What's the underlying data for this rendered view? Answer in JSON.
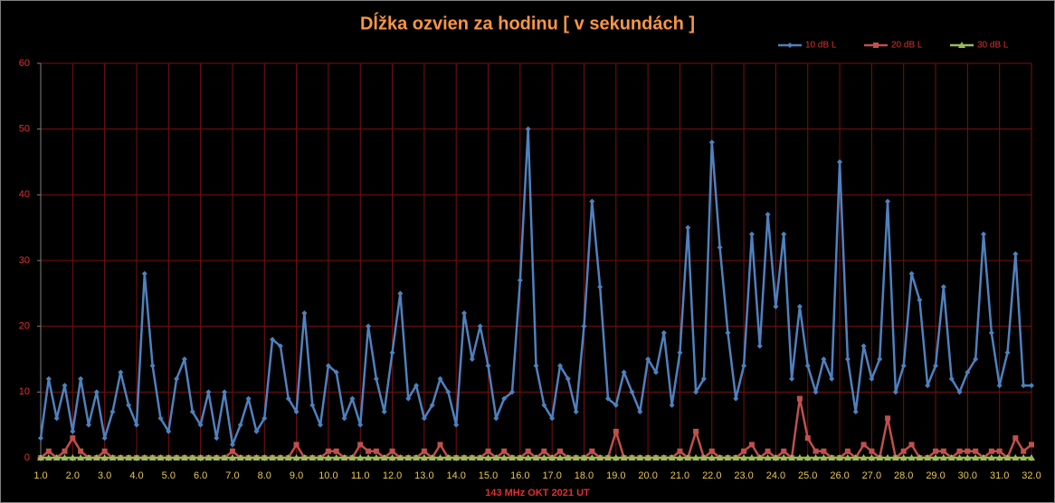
{
  "chart_data": {
    "type": "line",
    "title": "Dĺžka ozvien za hodinu [ v sekundách ]",
    "x_label": "143 MHz OKT  2021  UT",
    "x": [
      1,
      1.25,
      1.5,
      1.75,
      2,
      2.25,
      2.5,
      2.75,
      3,
      3.25,
      3.5,
      3.75,
      4,
      4.25,
      4.5,
      4.75,
      5,
      5.25,
      5.5,
      5.75,
      6,
      6.25,
      6.5,
      6.75,
      7,
      7.25,
      7.5,
      7.75,
      8,
      8.25,
      8.5,
      8.75,
      9,
      9.25,
      9.5,
      9.75,
      10,
      10.25,
      10.5,
      10.75,
      11,
      11.25,
      11.5,
      11.75,
      12,
      12.25,
      12.5,
      12.75,
      13,
      13.25,
      13.5,
      13.75,
      14,
      14.25,
      14.5,
      14.75,
      15,
      15.25,
      15.5,
      15.75,
      16,
      16.25,
      16.5,
      16.75,
      17,
      17.25,
      17.5,
      17.75,
      18,
      18.25,
      18.5,
      18.75,
      19,
      19.25,
      19.5,
      19.75,
      20,
      20.25,
      20.5,
      20.75,
      21,
      21.25,
      21.5,
      21.75,
      22,
      22.25,
      22.5,
      22.75,
      23,
      23.25,
      23.5,
      23.75,
      24,
      24.25,
      24.5,
      24.75,
      25,
      25.25,
      25.5,
      25.75,
      26,
      26.25,
      26.5,
      26.75,
      27,
      27.25,
      27.5,
      27.75,
      28,
      28.25,
      28.5,
      28.75,
      29,
      29.25,
      29.5,
      29.75,
      30,
      30.25,
      30.5,
      30.75,
      31,
      31.25,
      31.5,
      31.75,
      32
    ],
    "series": [
      {
        "name": "10 dB L",
        "color": "#4f81bd",
        "marker": "diamond",
        "values": [
          3,
          12,
          6,
          11,
          4,
          12,
          5,
          10,
          3,
          7,
          13,
          8,
          5,
          28,
          14,
          6,
          4,
          12,
          15,
          7,
          5,
          10,
          3,
          10,
          2,
          5,
          9,
          4,
          6,
          18,
          17,
          9,
          7,
          22,
          8,
          5,
          14,
          13,
          6,
          9,
          5,
          20,
          12,
          7,
          16,
          25,
          9,
          11,
          6,
          8,
          12,
          10,
          5,
          22,
          15,
          20,
          14,
          6,
          9,
          10,
          27,
          50,
          14,
          8,
          6,
          14,
          12,
          7,
          20,
          39,
          26,
          9,
          8,
          13,
          10,
          7,
          15,
          13,
          19,
          8,
          16,
          35,
          10,
          12,
          48,
          32,
          19,
          9,
          14,
          34,
          17,
          37,
          23,
          34,
          12,
          23,
          14,
          10,
          15,
          12,
          45,
          15,
          7,
          17,
          12,
          15,
          39,
          10,
          14,
          28,
          24,
          11,
          14,
          26,
          12,
          10,
          13,
          15,
          34,
          19,
          11,
          16,
          31,
          11,
          11
        ]
      },
      {
        "name": "20 dB L",
        "color": "#c0504d",
        "marker": "square",
        "values": [
          0,
          1,
          0,
          1,
          3,
          1,
          0,
          0,
          1,
          0,
          0,
          0,
          0,
          0,
          0,
          0,
          0,
          0,
          0,
          0,
          0,
          0,
          0,
          0,
          1,
          0,
          0,
          0,
          0,
          0,
          0,
          0,
          2,
          0,
          0,
          0,
          1,
          1,
          0,
          0,
          2,
          1,
          1,
          0,
          1,
          0,
          0,
          0,
          1,
          0,
          2,
          0,
          0,
          0,
          0,
          0,
          1,
          0,
          1,
          0,
          0,
          1,
          0,
          1,
          0,
          1,
          0,
          0,
          0,
          1,
          0,
          0,
          4,
          0,
          0,
          0,
          0,
          0,
          0,
          0,
          1,
          0,
          4,
          0,
          1,
          0,
          0,
          0,
          1,
          2,
          0,
          1,
          0,
          1,
          0,
          9,
          3,
          1,
          1,
          0,
          0,
          1,
          0,
          2,
          1,
          0,
          6,
          0,
          1,
          2,
          0,
          0,
          1,
          1,
          0,
          1,
          1,
          1,
          0,
          1,
          1,
          0,
          3,
          1,
          2
        ]
      },
      {
        "name": "30 dB L",
        "color": "#9bbb59",
        "marker": "triangle",
        "values": [
          0,
          0,
          0,
          0,
          0,
          0,
          0,
          0,
          0,
          0,
          0,
          0,
          0,
          0,
          0,
          0,
          0,
          0,
          0,
          0,
          0,
          0,
          0,
          0,
          0,
          0,
          0,
          0,
          0,
          0,
          0,
          0,
          0,
          0,
          0,
          0,
          0,
          0,
          0,
          0,
          0,
          0,
          0,
          0,
          0,
          0,
          0,
          0,
          0,
          0,
          0,
          0,
          0,
          0,
          0,
          0,
          0,
          0,
          0,
          0,
          0,
          0,
          0,
          0,
          0,
          0,
          0,
          0,
          0,
          0,
          0,
          0,
          0,
          0,
          0,
          0,
          0,
          0,
          0,
          0,
          0,
          0,
          0,
          0,
          0,
          0,
          0,
          0,
          0,
          0,
          0,
          0,
          0,
          0,
          0,
          0,
          0,
          0,
          0,
          0,
          0,
          0,
          0,
          0,
          0,
          0,
          0,
          0,
          0,
          0,
          0,
          0,
          0,
          0,
          0,
          0,
          0,
          0,
          0,
          0,
          0,
          0,
          0,
          0,
          0
        ]
      }
    ],
    "xlim": [
      1,
      32
    ],
    "xticks": [
      {
        "value": 1,
        "label": "1.0"
      },
      {
        "value": 2,
        "label": "2.0"
      },
      {
        "value": 3,
        "label": "3.0"
      },
      {
        "value": 4,
        "label": "4.0"
      },
      {
        "value": 5,
        "label": "5.0"
      },
      {
        "value": 6,
        "label": "6.0"
      },
      {
        "value": 7,
        "label": "7.0"
      },
      {
        "value": 8,
        "label": "8.0"
      },
      {
        "value": 9,
        "label": "9.0"
      },
      {
        "value": 10,
        "label": "10.0"
      },
      {
        "value": 11,
        "label": "11.0"
      },
      {
        "value": 12,
        "label": "12.0"
      },
      {
        "value": 13,
        "label": "13.0"
      },
      {
        "value": 14,
        "label": "14.0"
      },
      {
        "value": 15,
        "label": "15.0"
      },
      {
        "value": 16,
        "label": "16.0"
      },
      {
        "value": 17,
        "label": "17.0"
      },
      {
        "value": 18,
        "label": "18.0"
      },
      {
        "value": 19,
        "label": "19.0"
      },
      {
        "value": 20,
        "label": "20.0"
      },
      {
        "value": 21,
        "label": "21.0"
      },
      {
        "value": 22,
        "label": "22.0"
      },
      {
        "value": 23,
        "label": "23.0"
      },
      {
        "value": 24,
        "label": "24.0"
      },
      {
        "value": 25,
        "label": "25.0"
      },
      {
        "value": 26,
        "label": "26.0"
      },
      {
        "value": 27,
        "label": "27.0"
      },
      {
        "value": 28,
        "label": "28.0"
      },
      {
        "value": 29,
        "label": "29.0"
      },
      {
        "value": 30,
        "label": "30.0"
      },
      {
        "value": 31,
        "label": "31.0"
      },
      {
        "value": 32,
        "label": "32.0"
      }
    ],
    "ylim": [
      0,
      60
    ],
    "yticks": [
      0,
      10,
      20,
      30,
      40,
      50,
      60
    ],
    "grid": true,
    "legend": "top-right"
  }
}
